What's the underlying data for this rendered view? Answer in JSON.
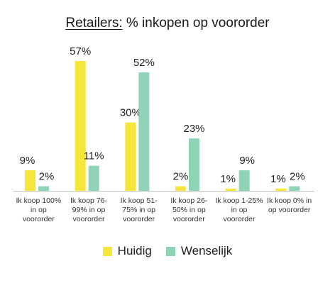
{
  "title": {
    "prefix": "Retailers:",
    "rest": " % inkopen op voororder"
  },
  "colors": {
    "huidig": "#f6e63a",
    "wenselijk": "#8fd4b6",
    "axis": "#bfbfbf"
  },
  "chart_data": {
    "type": "bar",
    "title": "Retailers: % inkopen op voororder",
    "categories": [
      "Ik koop 100% in op voororder",
      "Ik koop 76-99% in op voororder",
      "Ik koop 51-75% in op voororder",
      "Ik koop 26-50% in op voororder",
      "Ik koop 1-25% in op voororder",
      "Ik koop 0% in op voororder"
    ],
    "series": [
      {
        "name": "Huidig",
        "values": [
          9,
          57,
          30,
          2,
          1,
          1
        ],
        "labels": [
          "9%",
          "57%",
          "30%",
          "2%",
          "1%",
          "1%"
        ]
      },
      {
        "name": "Wenselijk",
        "values": [
          2,
          11,
          52,
          23,
          9,
          2
        ],
        "labels": [
          "2%",
          "11%",
          "52%",
          "23%",
          "9%",
          "2%"
        ]
      }
    ],
    "ylim": [
      0,
      60
    ],
    "grid": false,
    "legend": "bottom"
  }
}
